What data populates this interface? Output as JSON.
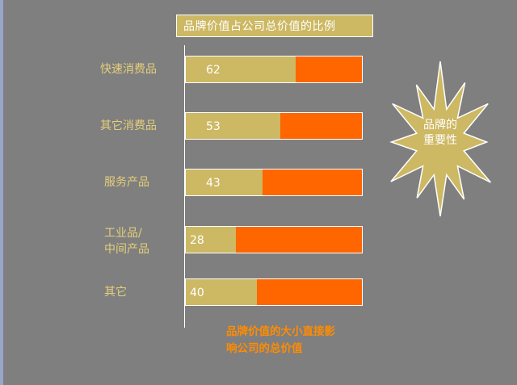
{
  "chart_data": {
    "type": "bar",
    "orientation": "horizontal",
    "stacked": true,
    "title": "品牌价值占公司总价值的比例",
    "categories": [
      "快速消费品",
      "其它消费品",
      "服务产品",
      "工业品/\n中间产品",
      "其它"
    ],
    "values": [
      62,
      53,
      43,
      28,
      40
    ],
    "xlim": [
      0,
      100
    ],
    "colors": {
      "value": "#cdb863",
      "remainder": "#ff6600"
    }
  },
  "callout": {
    "text": "品牌的\n重要性",
    "color": "#cdb863"
  },
  "note": {
    "text": "品牌价值的大小直接影\n响公司的总价值",
    "color": "#ff8c00"
  }
}
